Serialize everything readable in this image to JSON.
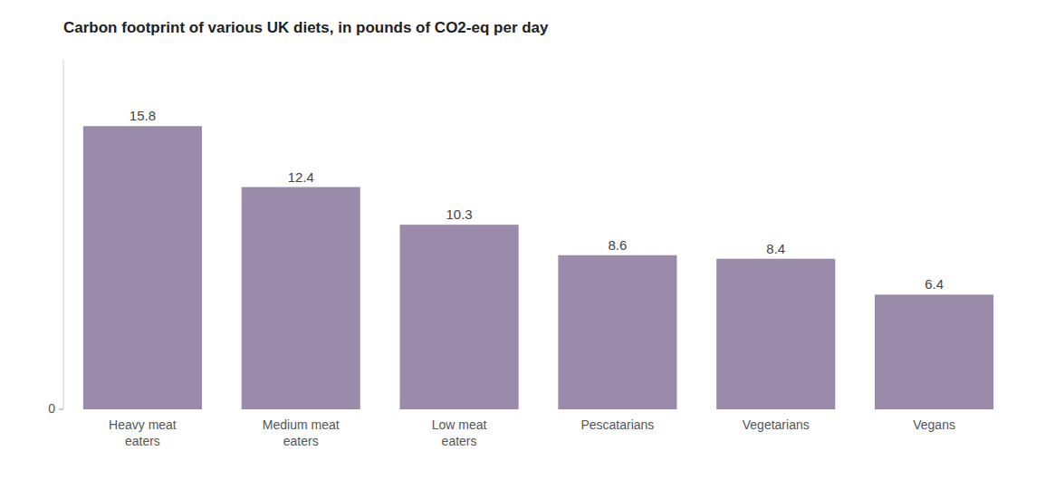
{
  "chart_data": {
    "type": "bar",
    "title": "Carbon footprint of various UK diets, in pounds of CO2-eq per day",
    "categories": [
      "Heavy meat\neaters",
      "Medium meat\neaters",
      "Low meat\neaters",
      "Pescatarians",
      "Vegetarians",
      "Vegans"
    ],
    "values": [
      15.8,
      12.4,
      10.3,
      8.6,
      8.4,
      6.4
    ],
    "color": "#9b8baa",
    "ylim": [
      0,
      19.5
    ],
    "yticks": [
      0
    ],
    "grid": false,
    "data_labels": true
  }
}
